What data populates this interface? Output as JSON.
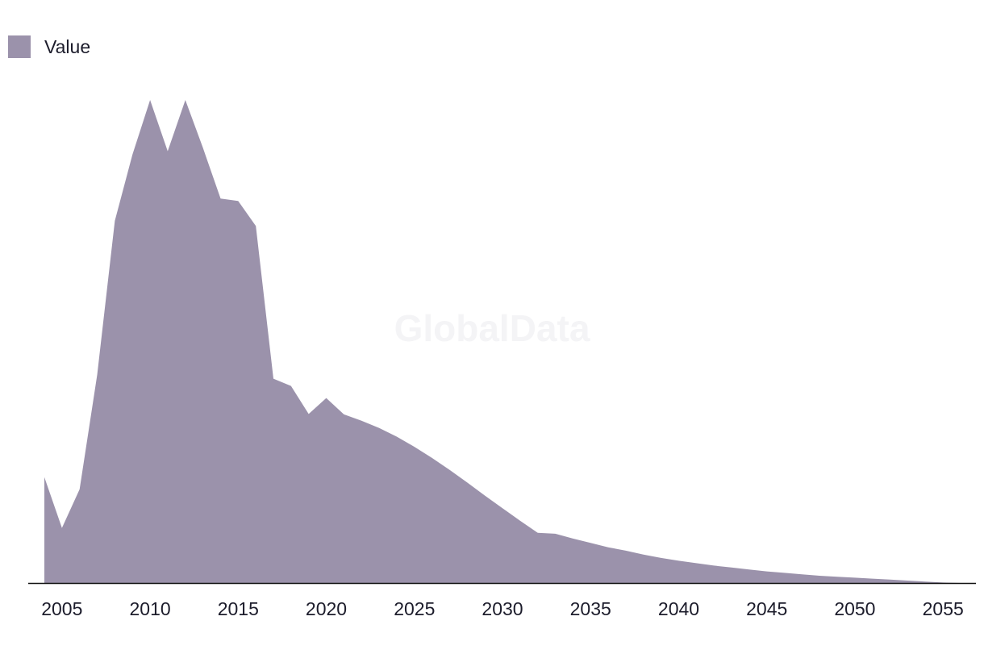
{
  "legend": {
    "label": "Value"
  },
  "watermark": "GlobalData",
  "chart_data": {
    "type": "area",
    "title": "",
    "xlabel": "",
    "ylabel": "",
    "color": "#9b92ab",
    "axis_color": "#111111",
    "xlim": [
      2004,
      2056
    ],
    "ylim": [
      0,
      100
    ],
    "x_ticks": [
      2005,
      2010,
      2015,
      2020,
      2025,
      2030,
      2035,
      2040,
      2045,
      2050,
      2055
    ],
    "legend_position": "top-left",
    "grid": false,
    "series": [
      {
        "name": "Value",
        "x": [
          2004,
          2005,
          2006,
          2007,
          2008,
          2009,
          2010,
          2011,
          2012,
          2013,
          2014,
          2015,
          2016,
          2017,
          2018,
          2019,
          2020,
          2021,
          2022,
          2023,
          2024,
          2025,
          2026,
          2027,
          2028,
          2029,
          2030,
          2031,
          2032,
          2033,
          2034,
          2035,
          2036,
          2037,
          2038,
          2039,
          2040,
          2041,
          2042,
          2043,
          2044,
          2045,
          2046,
          2047,
          2048,
          2049,
          2050,
          2051,
          2052,
          2053,
          2054,
          2055,
          2056
        ],
        "values": [
          21.9,
          11.4,
          19.4,
          43.1,
          75.0,
          88.7,
          100.0,
          89.4,
          100.0,
          90.1,
          79.6,
          79.1,
          73.9,
          42.3,
          40.8,
          35.0,
          38.3,
          34.9,
          33.6,
          32.1,
          30.3,
          28.2,
          25.9,
          23.4,
          20.8,
          18.1,
          15.5,
          12.9,
          10.4,
          10.2,
          9.2,
          8.3,
          7.4,
          6.7,
          5.9,
          5.2,
          4.6,
          4.1,
          3.6,
          3.2,
          2.8,
          2.4,
          2.1,
          1.8,
          1.5,
          1.3,
          1.1,
          0.9,
          0.7,
          0.5,
          0.3,
          0.1,
          0.0
        ]
      }
    ]
  }
}
